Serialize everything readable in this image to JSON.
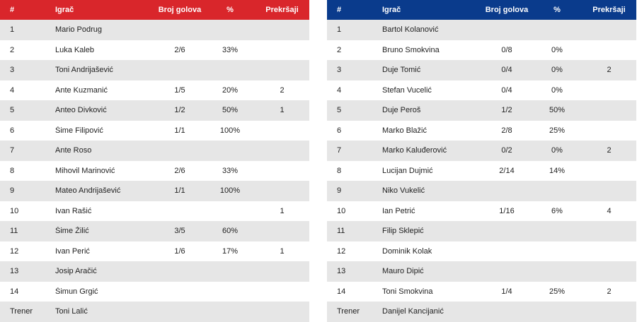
{
  "headers": {
    "num": "#",
    "player": "Igrač",
    "goals": "Broj golova",
    "pct": "%",
    "fouls": "Prekršaji"
  },
  "colors": {
    "home_header": "#d9262b",
    "away_header": "#0a3b8c",
    "alt_row": "#e6e6e6"
  },
  "home": {
    "rows": [
      {
        "num": "1",
        "name": "Mario Podrug",
        "goals": "",
        "pct": "",
        "fouls": ""
      },
      {
        "num": "2",
        "name": "Luka Kaleb",
        "goals": "2/6",
        "pct": "33%",
        "fouls": ""
      },
      {
        "num": "3",
        "name": "Toni Andrijašević",
        "goals": "",
        "pct": "",
        "fouls": ""
      },
      {
        "num": "4",
        "name": "Ante Kuzmanić",
        "goals": "1/5",
        "pct": "20%",
        "fouls": "2"
      },
      {
        "num": "5",
        "name": "Anteo Divković",
        "goals": "1/2",
        "pct": "50%",
        "fouls": "1"
      },
      {
        "num": "6",
        "name": "Šime Filipović",
        "goals": "1/1",
        "pct": "100%",
        "fouls": ""
      },
      {
        "num": "7",
        "name": "Ante Roso",
        "goals": "",
        "pct": "",
        "fouls": ""
      },
      {
        "num": "8",
        "name": "Mihovil Marinović",
        "goals": "2/6",
        "pct": "33%",
        "fouls": ""
      },
      {
        "num": "9",
        "name": "Mateo Andrijašević",
        "goals": "1/1",
        "pct": "100%",
        "fouls": ""
      },
      {
        "num": "10",
        "name": "Ivan Rašić",
        "goals": "",
        "pct": "",
        "fouls": "1"
      },
      {
        "num": "11",
        "name": "Šime Žilić",
        "goals": "3/5",
        "pct": "60%",
        "fouls": ""
      },
      {
        "num": "12",
        "name": "Ivan Perić",
        "goals": "1/6",
        "pct": "17%",
        "fouls": "1"
      },
      {
        "num": "13",
        "name": "Josip Aračić",
        "goals": "",
        "pct": "",
        "fouls": ""
      },
      {
        "num": "14",
        "name": "Šimun Grgić",
        "goals": "",
        "pct": "",
        "fouls": ""
      },
      {
        "num": "Trener",
        "name": "Toni Lalić",
        "goals": "",
        "pct": "",
        "fouls": ""
      }
    ]
  },
  "away": {
    "rows": [
      {
        "num": "1",
        "name": "Bartol Kolanović",
        "goals": "",
        "pct": "",
        "fouls": ""
      },
      {
        "num": "2",
        "name": "Bruno Smokvina",
        "goals": "0/8",
        "pct": "0%",
        "fouls": ""
      },
      {
        "num": "3",
        "name": "Duje Tomić",
        "goals": "0/4",
        "pct": "0%",
        "fouls": "2"
      },
      {
        "num": "4",
        "name": "Stefan Vucelić",
        "goals": "0/4",
        "pct": "0%",
        "fouls": ""
      },
      {
        "num": "5",
        "name": "Duje Peroš",
        "goals": "1/2",
        "pct": "50%",
        "fouls": ""
      },
      {
        "num": "6",
        "name": "Marko Blažić",
        "goals": "2/8",
        "pct": "25%",
        "fouls": ""
      },
      {
        "num": "7",
        "name": "Marko Kaluđerović",
        "goals": "0/2",
        "pct": "0%",
        "fouls": "2"
      },
      {
        "num": "8",
        "name": "Lucijan Dujmić",
        "goals": "2/14",
        "pct": "14%",
        "fouls": ""
      },
      {
        "num": "9",
        "name": "Niko Vukelić",
        "goals": "",
        "pct": "",
        "fouls": ""
      },
      {
        "num": "10",
        "name": "Ian Petrić",
        "goals": "1/16",
        "pct": "6%",
        "fouls": "4"
      },
      {
        "num": "11",
        "name": "Filip Sklepić",
        "goals": "",
        "pct": "",
        "fouls": ""
      },
      {
        "num": "12",
        "name": "Dominik Kolak",
        "goals": "",
        "pct": "",
        "fouls": ""
      },
      {
        "num": "13",
        "name": "Mauro Dipić",
        "goals": "",
        "pct": "",
        "fouls": ""
      },
      {
        "num": "14",
        "name": "Toni Smokvina",
        "goals": "1/4",
        "pct": "25%",
        "fouls": "2"
      },
      {
        "num": "Trener",
        "name": "Danijel Kancijanić",
        "goals": "",
        "pct": "",
        "fouls": ""
      }
    ]
  }
}
